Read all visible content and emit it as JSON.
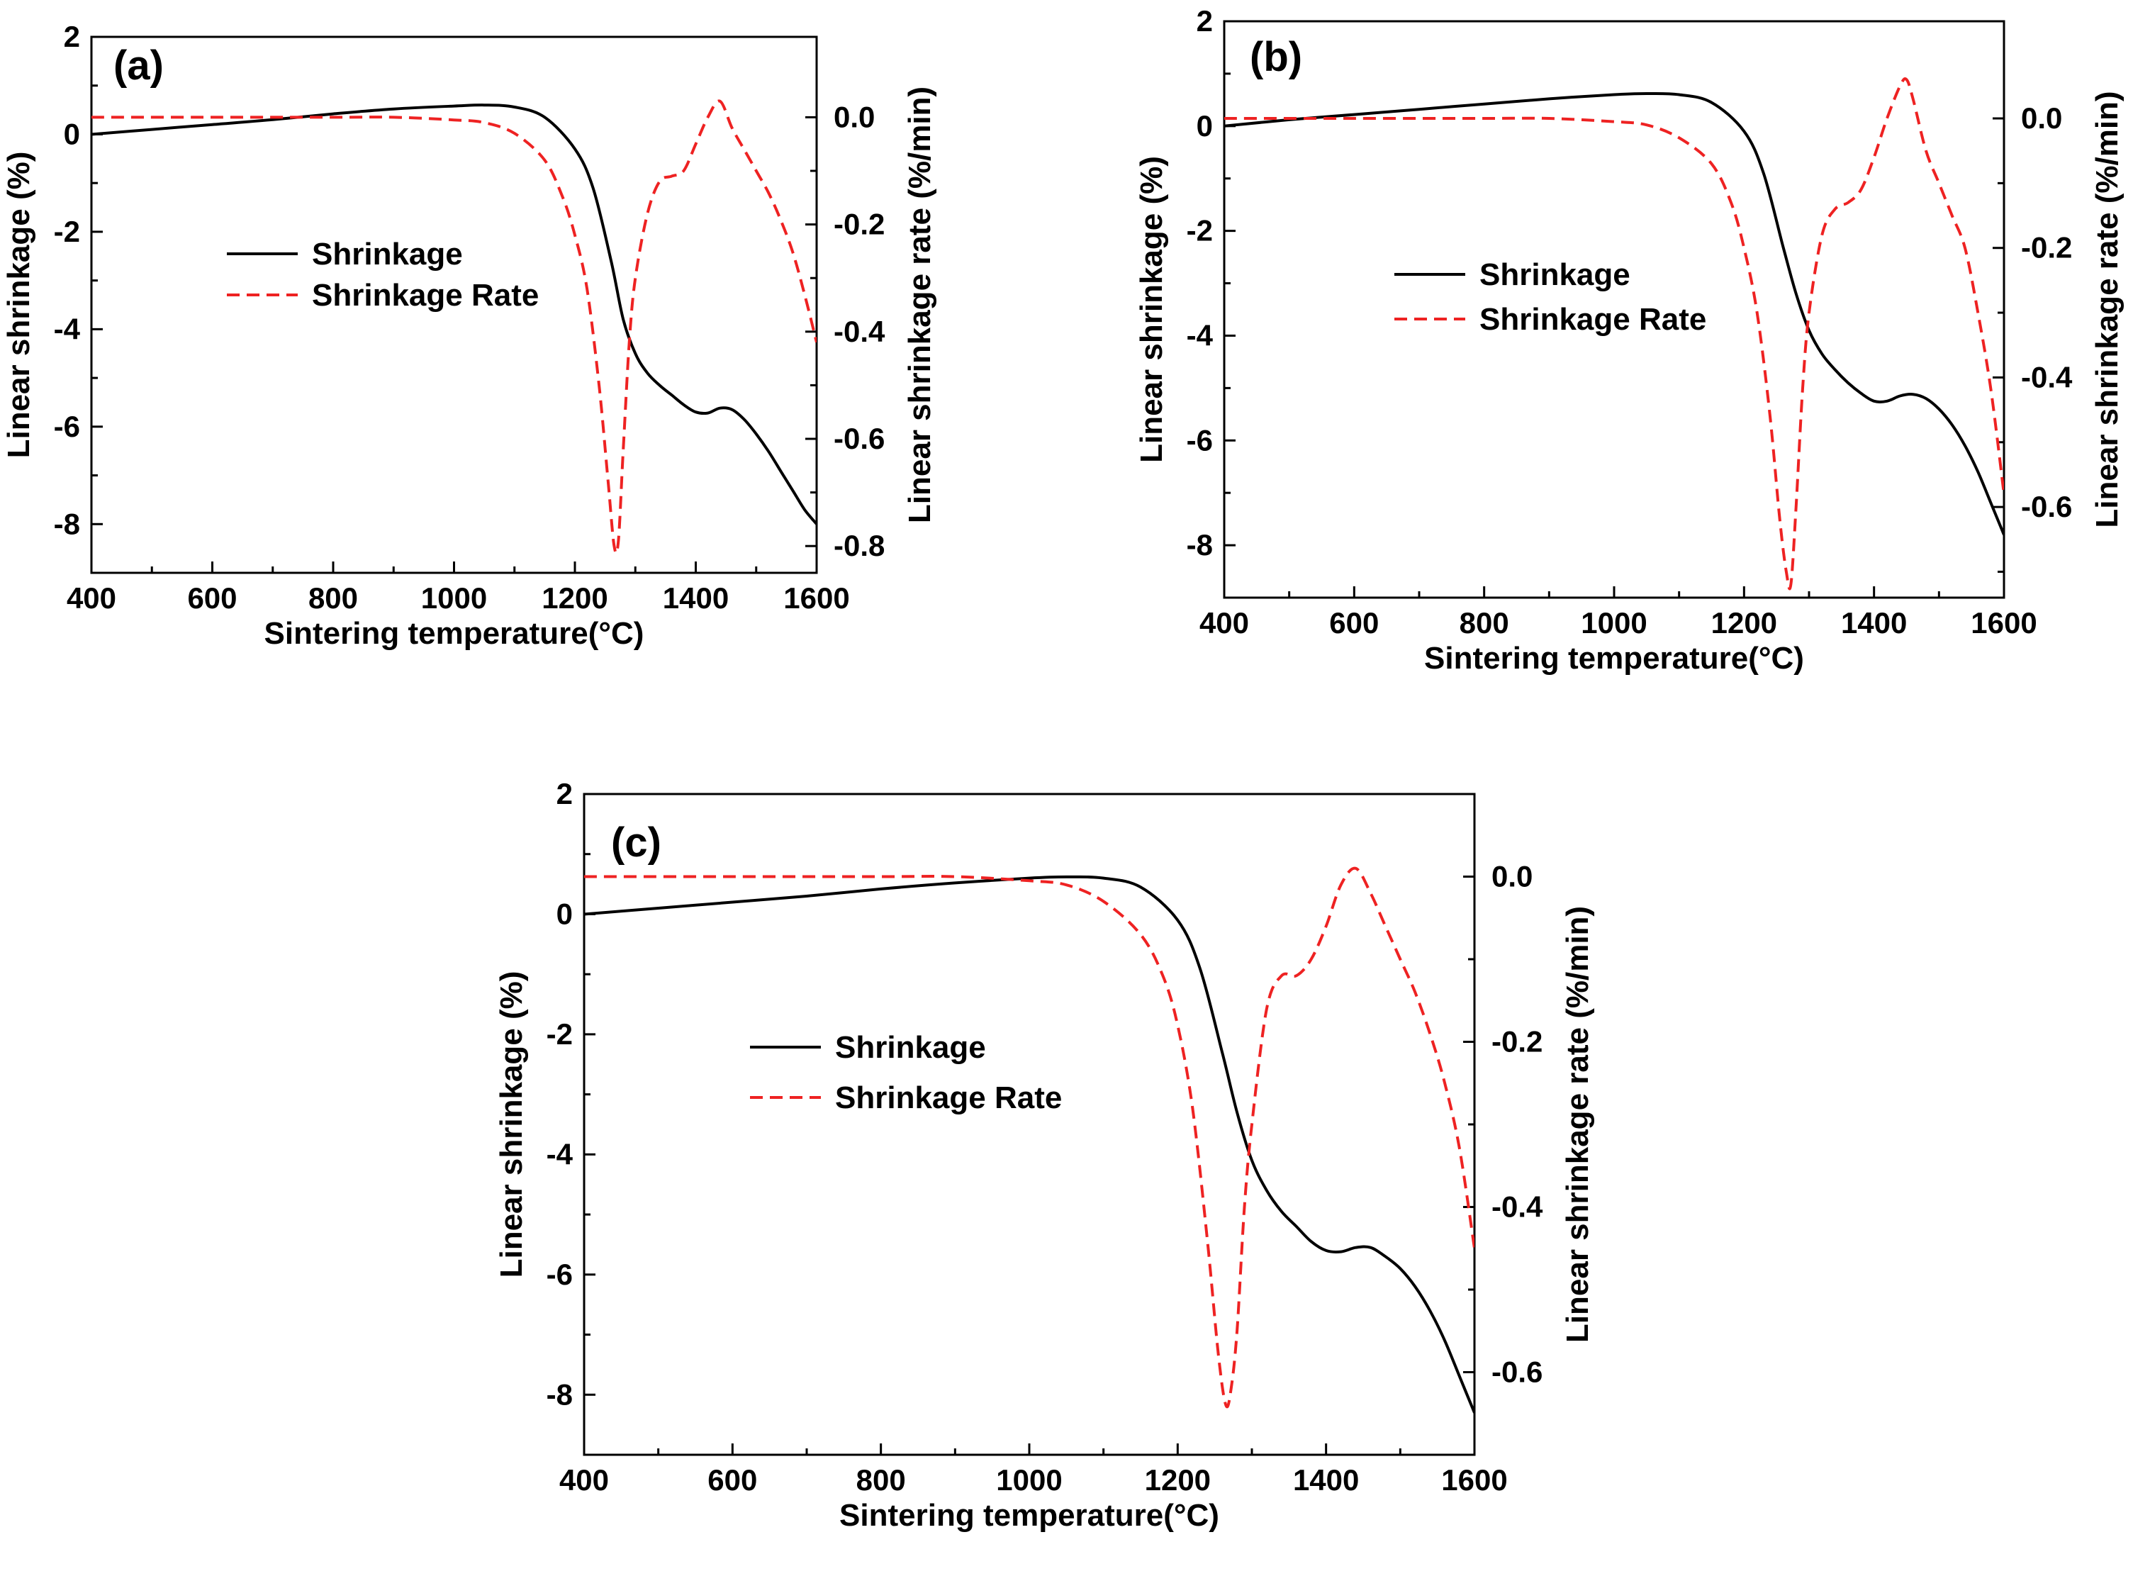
{
  "chart_data": [
    {
      "type": "line",
      "panel_label": "(a)",
      "xlabel": "Sintering temperature(°C)",
      "ylabel_left": "Linear shrinkage (%)",
      "ylabel_right": "Linear shrinkage rate (%/min)",
      "xlim": [
        400,
        1600
      ],
      "ylim_left": [
        -9.0,
        2.0
      ],
      "ylim_right": [
        -0.85,
        0.15
      ],
      "x_ticks": [
        "400",
        "600",
        "800",
        "1000",
        "1200",
        "1400",
        "1600"
      ],
      "y_left_ticks": [
        "2",
        "0",
        "-2",
        "-4",
        "-6",
        "-8"
      ],
      "y_right_ticks": [
        "0.0",
        "-0.2",
        "-0.4",
        "-0.6",
        "-0.8"
      ],
      "legend": [
        "Shrinkage",
        "Shrinkage Rate"
      ],
      "series": [
        {
          "name": "Shrinkage",
          "axis": "left",
          "color": "#000000",
          "dash": "solid",
          "x": [
            400,
            500,
            600,
            700,
            800,
            900,
            1000,
            1050,
            1100,
            1150,
            1200,
            1230,
            1260,
            1280,
            1300,
            1320,
            1340,
            1360,
            1380,
            1400,
            1420,
            1440,
            1460,
            1480,
            1500,
            1520,
            1540,
            1560,
            1580,
            1600
          ],
          "y": [
            0.0,
            0.1,
            0.2,
            0.3,
            0.42,
            0.52,
            0.58,
            0.6,
            0.56,
            0.35,
            -0.3,
            -1.1,
            -2.6,
            -3.8,
            -4.5,
            -4.9,
            -5.15,
            -5.35,
            -5.55,
            -5.7,
            -5.72,
            -5.62,
            -5.65,
            -5.85,
            -6.15,
            -6.5,
            -6.9,
            -7.3,
            -7.7,
            -8.0
          ]
        },
        {
          "name": "Shrinkage Rate",
          "axis": "right",
          "color": "#ee2222",
          "dash": "dashed",
          "x": [
            400,
            600,
            800,
            900,
            1000,
            1050,
            1100,
            1150,
            1180,
            1200,
            1220,
            1240,
            1255,
            1265,
            1272,
            1280,
            1290,
            1300,
            1320,
            1340,
            1360,
            1380,
            1400,
            1420,
            1440,
            1460,
            1480,
            1500,
            1520,
            1540,
            1560,
            1580,
            1600
          ],
          "y": [
            0.0,
            0.0,
            0.0,
            0.0,
            -0.005,
            -0.01,
            -0.03,
            -0.08,
            -0.15,
            -0.22,
            -0.32,
            -0.5,
            -0.68,
            -0.8,
            -0.79,
            -0.62,
            -0.42,
            -0.3,
            -0.18,
            -0.12,
            -0.11,
            -0.1,
            -0.05,
            -0.0,
            0.03,
            -0.02,
            -0.06,
            -0.1,
            -0.14,
            -0.19,
            -0.25,
            -0.33,
            -0.42
          ]
        }
      ]
    },
    {
      "type": "line",
      "panel_label": "(b)",
      "xlabel": "Sintering temperature(°C)",
      "ylabel_left": "Linear shrinkage (%)",
      "ylabel_right": "Linear shrinkage rate (%/min)",
      "xlim": [
        400,
        1600
      ],
      "ylim_left": [
        -9.0,
        2.0
      ],
      "ylim_right": [
        -0.74,
        0.15
      ],
      "x_ticks": [
        "400",
        "600",
        "800",
        "1000",
        "1200",
        "1400",
        "1600"
      ],
      "y_left_ticks": [
        "2",
        "0",
        "-2",
        "-4",
        "-6",
        "-8"
      ],
      "y_right_ticks": [
        "0.0",
        "-0.2",
        "-0.4",
        "-0.6"
      ],
      "legend": [
        "Shrinkage",
        "Shrinkage Rate"
      ],
      "series": [
        {
          "name": "Shrinkage",
          "axis": "left",
          "color": "#000000",
          "dash": "solid",
          "x": [
            400,
            500,
            600,
            700,
            800,
            900,
            1000,
            1050,
            1100,
            1150,
            1200,
            1230,
            1260,
            1280,
            1300,
            1320,
            1340,
            1360,
            1380,
            1400,
            1420,
            1440,
            1460,
            1480,
            1500,
            1520,
            1540,
            1560,
            1580,
            1600
          ],
          "y": [
            0.0,
            0.12,
            0.22,
            0.32,
            0.42,
            0.52,
            0.6,
            0.62,
            0.6,
            0.45,
            -0.1,
            -0.9,
            -2.3,
            -3.2,
            -3.9,
            -4.35,
            -4.65,
            -4.9,
            -5.1,
            -5.25,
            -5.25,
            -5.15,
            -5.12,
            -5.2,
            -5.4,
            -5.7,
            -6.1,
            -6.6,
            -7.2,
            -7.8
          ]
        },
        {
          "name": "Shrinkage Rate",
          "axis": "right",
          "color": "#ee2222",
          "dash": "dashed",
          "x": [
            400,
            600,
            800,
            900,
            1000,
            1050,
            1100,
            1150,
            1180,
            1200,
            1220,
            1240,
            1255,
            1265,
            1272,
            1280,
            1290,
            1300,
            1320,
            1340,
            1360,
            1380,
            1400,
            1420,
            1440,
            1450,
            1460,
            1480,
            1500,
            1520,
            1540,
            1560,
            1580,
            1600
          ],
          "y": [
            0.0,
            0.0,
            0.0,
            0.0,
            -0.005,
            -0.01,
            -0.03,
            -0.07,
            -0.13,
            -0.2,
            -0.3,
            -0.46,
            -0.62,
            -0.7,
            -0.72,
            -0.6,
            -0.42,
            -0.3,
            -0.18,
            -0.14,
            -0.13,
            -0.11,
            -0.06,
            -0.0,
            0.05,
            0.06,
            0.03,
            -0.05,
            -0.1,
            -0.15,
            -0.2,
            -0.3,
            -0.42,
            -0.58
          ]
        }
      ]
    },
    {
      "type": "line",
      "panel_label": "(c)",
      "xlabel": "Sintering temperature(°C)",
      "ylabel_left": "Linear shrinkage (%)",
      "ylabel_right": "Linear shrinkage rate (%/min)",
      "xlim": [
        400,
        1600
      ],
      "ylim_left": [
        -9.0,
        2.0
      ],
      "ylim_right": [
        -0.7,
        0.1
      ],
      "x_ticks": [
        "400",
        "600",
        "800",
        "1000",
        "1200",
        "1400",
        "1600"
      ],
      "y_left_ticks": [
        "2",
        "0",
        "-2",
        "-4",
        "-6",
        "-8"
      ],
      "y_right_ticks": [
        "0.0",
        "-0.2",
        "-0.4",
        "-0.6"
      ],
      "legend": [
        "Shrinkage",
        "Shrinkage Rate"
      ],
      "series": [
        {
          "name": "Shrinkage",
          "axis": "left",
          "color": "#000000",
          "dash": "solid",
          "x": [
            400,
            500,
            600,
            700,
            800,
            900,
            1000,
            1050,
            1100,
            1150,
            1200,
            1230,
            1260,
            1280,
            1300,
            1320,
            1340,
            1360,
            1380,
            1400,
            1420,
            1440,
            1460,
            1480,
            1500,
            1520,
            1540,
            1560,
            1580,
            1600
          ],
          "y": [
            0.0,
            0.1,
            0.2,
            0.3,
            0.42,
            0.52,
            0.6,
            0.62,
            0.6,
            0.45,
            -0.1,
            -0.9,
            -2.3,
            -3.3,
            -4.1,
            -4.6,
            -4.95,
            -5.2,
            -5.45,
            -5.6,
            -5.62,
            -5.55,
            -5.55,
            -5.7,
            -5.9,
            -6.2,
            -6.6,
            -7.1,
            -7.7,
            -8.3
          ]
        },
        {
          "name": "Shrinkage Rate",
          "axis": "right",
          "color": "#ee2222",
          "dash": "dashed",
          "x": [
            400,
            600,
            800,
            900,
            1000,
            1050,
            1100,
            1150,
            1180,
            1200,
            1220,
            1240,
            1255,
            1265,
            1272,
            1280,
            1290,
            1300,
            1320,
            1340,
            1360,
            1380,
            1400,
            1420,
            1440,
            1460,
            1480,
            1500,
            1520,
            1540,
            1560,
            1580,
            1600
          ],
          "y": [
            0.0,
            0.0,
            0.0,
            0.0,
            -0.005,
            -0.01,
            -0.03,
            -0.07,
            -0.12,
            -0.18,
            -0.28,
            -0.44,
            -0.58,
            -0.64,
            -0.62,
            -0.55,
            -0.4,
            -0.3,
            -0.16,
            -0.12,
            -0.12,
            -0.1,
            -0.06,
            -0.01,
            0.01,
            -0.02,
            -0.06,
            -0.1,
            -0.14,
            -0.19,
            -0.25,
            -0.33,
            -0.45
          ]
        }
      ]
    }
  ]
}
